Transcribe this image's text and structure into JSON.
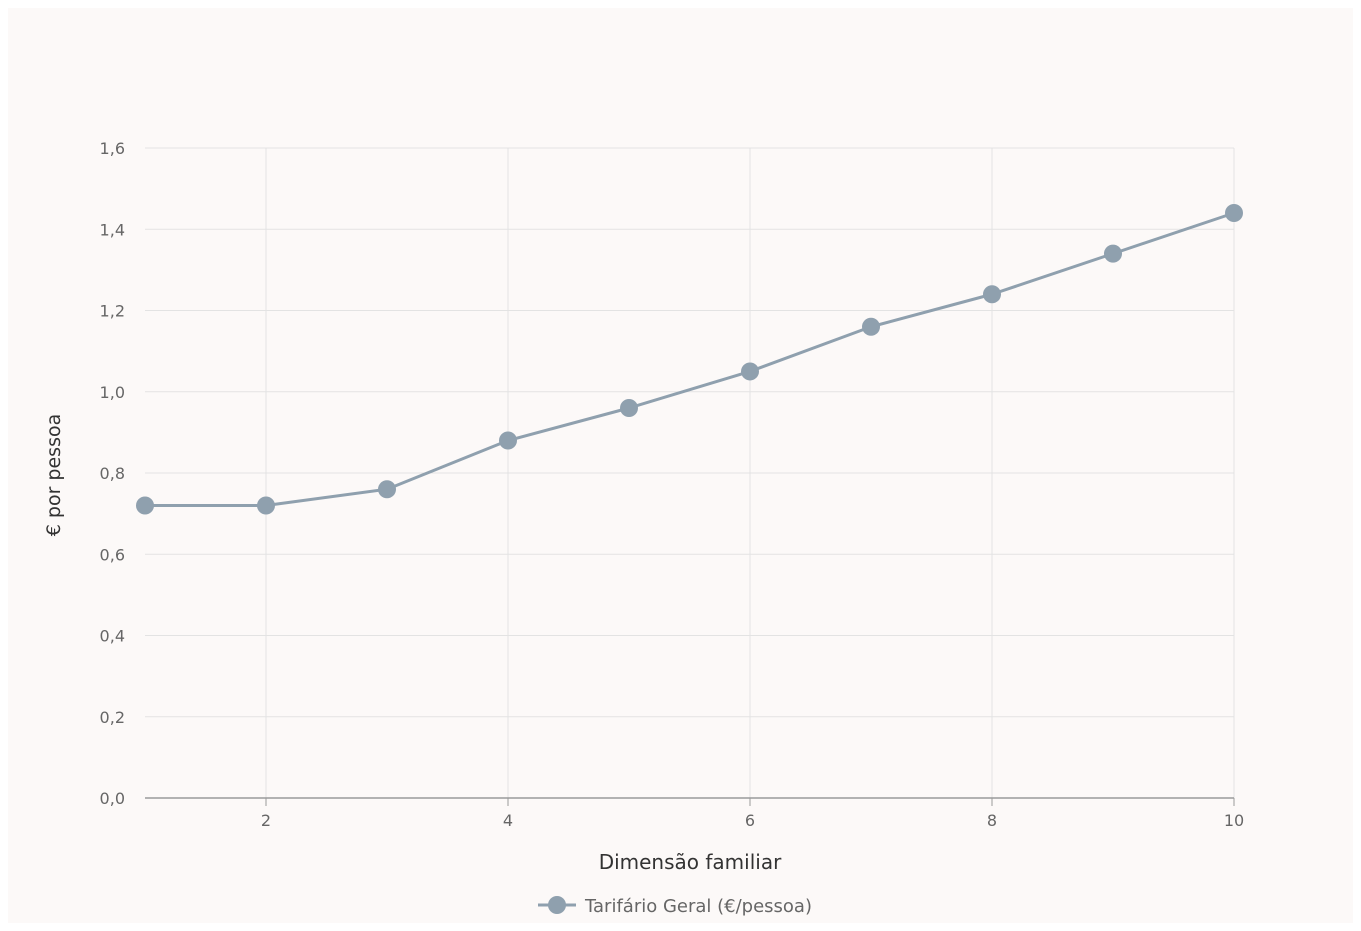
{
  "chart_data": {
    "type": "line",
    "title": "",
    "xlabel": "Dimensão familiar",
    "ylabel": "€ por pessoa",
    "x": [
      1,
      2,
      3,
      4,
      5,
      6,
      7,
      8,
      9,
      10
    ],
    "xlim": [
      1,
      10
    ],
    "x_ticks": [
      2,
      4,
      6,
      8,
      10
    ],
    "x_tick_labels": [
      "2",
      "4",
      "6",
      "8",
      "10"
    ],
    "ylim": [
      0,
      1.6
    ],
    "y_ticks": [
      0,
      0.2,
      0.4,
      0.6,
      0.8,
      1.0,
      1.2,
      1.4,
      1.6
    ],
    "y_tick_labels": [
      "0,0",
      "0,2",
      "0,4",
      "0,6",
      "0,8",
      "1,0",
      "1,2",
      "1,4",
      "1,6"
    ],
    "grid": true,
    "legend_position": "bottom-center",
    "series": [
      {
        "name": "Tarifário Geral (€/pessoa)",
        "color": "#8fa0ae",
        "values": [
          0.72,
          0.72,
          0.76,
          0.88,
          0.96,
          1.05,
          1.16,
          1.24,
          1.34,
          1.44
        ]
      }
    ]
  },
  "colors": {
    "background": "#fcf9f8",
    "grid": "#e3e3e3",
    "axis": "#9a9a9a",
    "tick_text": "#666666",
    "title_text": "#333333"
  }
}
